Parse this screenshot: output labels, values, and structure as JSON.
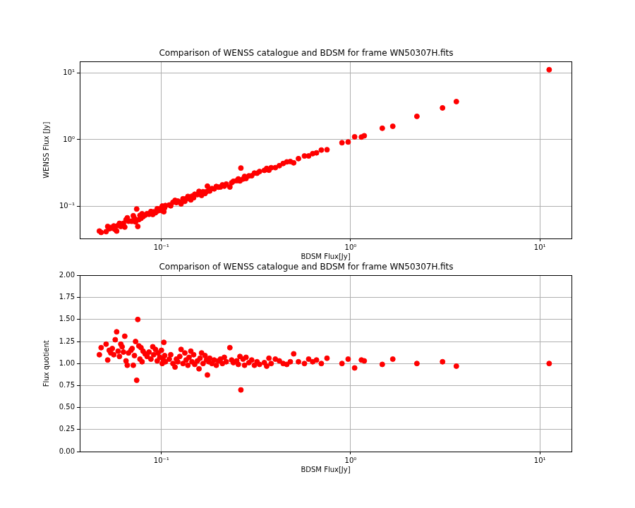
{
  "chart_data": [
    {
      "type": "scatter",
      "title": "Comparison of WENSS catalogue and BDSM for frame WN50307H.fits",
      "x_label": "BDSM Flux[Jy]",
      "y_label": "WENSS Flux [Jy]",
      "color": "#ff0000",
      "marker": "circle",
      "log": true,
      "grid": true,
      "xlim": [
        0.037,
        14.7
      ],
      "ylim": [
        0.033,
        14.8
      ],
      "xticks": [
        {
          "value": 0.1,
          "label": "10⁻¹"
        },
        {
          "value": 1,
          "label": "10⁰"
        },
        {
          "value": 10,
          "label": "10¹"
        }
      ],
      "yticks": [
        {
          "value": 0.1,
          "label": "10⁻¹"
        },
        {
          "value": 1,
          "label": "10⁰"
        },
        {
          "value": 10,
          "label": "10¹"
        }
      ],
      "x": [
        0.047,
        0.048,
        0.051,
        0.052,
        0.053,
        0.054,
        0.055,
        0.056,
        0.057,
        0.058,
        0.059,
        0.06,
        0.061,
        0.062,
        0.063,
        0.064,
        0.065,
        0.066,
        0.067,
        0.069,
        0.07,
        0.071,
        0.072,
        0.073,
        0.074,
        0.075,
        0.076,
        0.077,
        0.078,
        0.079,
        0.08,
        0.082,
        0.084,
        0.086,
        0.088,
        0.09,
        0.091,
        0.093,
        0.095,
        0.096,
        0.098,
        0.1,
        0.101,
        0.102,
        0.103,
        0.104,
        0.105,
        0.11,
        0.112,
        0.115,
        0.118,
        0.12,
        0.122,
        0.125,
        0.127,
        0.13,
        0.133,
        0.135,
        0.138,
        0.14,
        0.143,
        0.145,
        0.148,
        0.15,
        0.155,
        0.158,
        0.16,
        0.163,
        0.166,
        0.17,
        0.173,
        0.175,
        0.178,
        0.18,
        0.185,
        0.19,
        0.195,
        0.2,
        0.205,
        0.21,
        0.215,
        0.22,
        0.23,
        0.235,
        0.24,
        0.25,
        0.255,
        0.26,
        0.263,
        0.27,
        0.275,
        0.28,
        0.29,
        0.3,
        0.31,
        0.32,
        0.33,
        0.35,
        0.36,
        0.37,
        0.38,
        0.4,
        0.42,
        0.44,
        0.46,
        0.48,
        0.5,
        0.53,
        0.57,
        0.6,
        0.63,
        0.66,
        0.7,
        0.75,
        0.9,
        0.97,
        1.05,
        1.14,
        1.18,
        1.47,
        1.67,
        2.24,
        3.06,
        3.62,
        11.2
      ],
      "values": [
        0.0427,
        0.0407,
        0.0418,
        0.05,
        0.0461,
        0.0482,
        0.047,
        0.0509,
        0.0449,
        0.0426,
        0.0518,
        0.0556,
        0.05,
        0.0521,
        0.0558,
        0.0489,
        0.0631,
        0.0673,
        0.0598,
        0.06,
        0.0598,
        0.0724,
        0.0661,
        0.0584,
        0.0914,
        0.05,
        0.0633,
        0.0733,
        0.0661,
        0.0775,
        0.0702,
        0.0739,
        0.0778,
        0.0761,
        0.0838,
        0.0756,
        0.0827,
        0.0802,
        0.0922,
        0.0857,
        0.0916,
        0.087,
        0.101,
        0.0971,
        0.0831,
        0.0954,
        0.103,
        0.105,
        0.102,
        0.115,
        0.123,
        0.114,
        0.12,
        0.116,
        0.109,
        0.13,
        0.119,
        0.13,
        0.141,
        0.131,
        0.125,
        0.142,
        0.135,
        0.152,
        0.15,
        0.168,
        0.151,
        0.146,
        0.166,
        0.156,
        0.166,
        0.201,
        0.175,
        0.17,
        0.185,
        0.183,
        0.199,
        0.194,
        0.195,
        0.21,
        0.201,
        0.216,
        0.195,
        0.226,
        0.238,
        0.243,
        0.258,
        0.241,
        0.376,
        0.257,
        0.281,
        0.262,
        0.287,
        0.288,
        0.316,
        0.314,
        0.333,
        0.347,
        0.371,
        0.349,
        0.38,
        0.381,
        0.408,
        0.44,
        0.465,
        0.471,
        0.45,
        0.52,
        0.57,
        0.571,
        0.618,
        0.635,
        0.7,
        0.708,
        0.9,
        0.924,
        1.105,
        1.096,
        1.146,
        1.485,
        1.59,
        2.24,
        3.0,
        3.73,
        11.2
      ]
    },
    {
      "type": "scatter",
      "title": "Comparison of WENSS catalogue and BDSM for frame WN50307H.fits",
      "x_label": "BDSM Flux[Jy]",
      "y_label": "Flux quotient",
      "color": "#ff0000",
      "marker": "circle",
      "log": "x",
      "grid": true,
      "xlim": [
        0.037,
        14.7
      ],
      "ylim": [
        0,
        2
      ],
      "xticks": [
        {
          "value": 0.1,
          "label": "10⁻¹"
        },
        {
          "value": 1,
          "label": "10⁰"
        },
        {
          "value": 10,
          "label": "10¹"
        }
      ],
      "yticks": [
        {
          "value": 0,
          "label": "0.00"
        },
        0.25,
        {
          "value": 0.5,
          "label": "0.50"
        },
        0.75,
        {
          "value": 1,
          "label": "1.00"
        },
        1.25,
        {
          "value": 1.5,
          "label": "1.50"
        },
        1.75,
        {
          "value": 2,
          "label": "2.00"
        }
      ],
      "x": [
        0.047,
        0.048,
        0.051,
        0.052,
        0.053,
        0.054,
        0.055,
        0.056,
        0.057,
        0.058,
        0.059,
        0.06,
        0.061,
        0.062,
        0.063,
        0.064,
        0.065,
        0.066,
        0.067,
        0.069,
        0.07,
        0.071,
        0.072,
        0.073,
        0.074,
        0.075,
        0.076,
        0.077,
        0.078,
        0.079,
        0.08,
        0.082,
        0.084,
        0.086,
        0.088,
        0.09,
        0.091,
        0.093,
        0.095,
        0.096,
        0.098,
        0.1,
        0.101,
        0.102,
        0.103,
        0.104,
        0.105,
        0.11,
        0.112,
        0.115,
        0.118,
        0.12,
        0.122,
        0.125,
        0.127,
        0.13,
        0.133,
        0.135,
        0.138,
        0.14,
        0.143,
        0.145,
        0.148,
        0.15,
        0.155,
        0.158,
        0.16,
        0.163,
        0.166,
        0.17,
        0.173,
        0.175,
        0.178,
        0.18,
        0.185,
        0.19,
        0.195,
        0.2,
        0.205,
        0.21,
        0.215,
        0.22,
        0.23,
        0.235,
        0.24,
        0.25,
        0.255,
        0.26,
        0.263,
        0.27,
        0.275,
        0.28,
        0.29,
        0.3,
        0.31,
        0.32,
        0.33,
        0.35,
        0.36,
        0.37,
        0.38,
        0.4,
        0.42,
        0.44,
        0.46,
        0.48,
        0.5,
        0.53,
        0.57,
        0.6,
        0.63,
        0.66,
        0.7,
        0.75,
        0.9,
        0.97,
        1.05,
        1.14,
        1.18,
        1.47,
        1.67,
        2.24,
        3.06,
        3.62,
        11.2
      ],
      "values": [
        1.1,
        1.18,
        1.22,
        1.04,
        1.15,
        1.12,
        1.17,
        1.1,
        1.27,
        1.36,
        1.14,
        1.08,
        1.22,
        1.19,
        1.13,
        1.31,
        1.03,
        0.98,
        1.12,
        1.15,
        1.17,
        0.98,
        1.09,
        1.25,
        0.81,
        1.5,
        1.2,
        1.05,
        1.18,
        1.02,
        1.14,
        1.11,
        1.08,
        1.13,
        1.05,
        1.19,
        1.1,
        1.16,
        1.03,
        1.12,
        1.07,
        1.15,
        1.0,
        1.05,
        1.24,
        1.09,
        1.02,
        1.05,
        1.1,
        1.0,
        0.96,
        1.05,
        1.02,
        1.08,
        1.16,
        1.0,
        1.12,
        1.04,
        0.98,
        1.07,
        1.14,
        1.02,
        1.1,
        0.99,
        1.03,
        0.94,
        1.06,
        1.12,
        1.0,
        1.09,
        1.04,
        0.87,
        1.02,
        1.06,
        1.0,
        1.04,
        0.98,
        1.03,
        1.05,
        1.0,
        1.07,
        1.02,
        1.18,
        1.04,
        1.01,
        1.03,
        0.99,
        1.08,
        0.7,
        1.05,
        0.98,
        1.07,
        1.01,
        1.04,
        0.98,
        1.02,
        0.99,
        1.01,
        0.97,
        1.06,
        1.0,
        1.05,
        1.03,
        1.0,
        0.99,
        1.02,
        1.11,
        1.02,
        1.0,
        1.05,
        1.02,
        1.04,
        1.0,
        1.06,
        1.0,
        1.05,
        0.95,
        1.04,
        1.03,
        0.99,
        1.05,
        1.0,
        1.02,
        0.97,
        1.0
      ]
    }
  ]
}
